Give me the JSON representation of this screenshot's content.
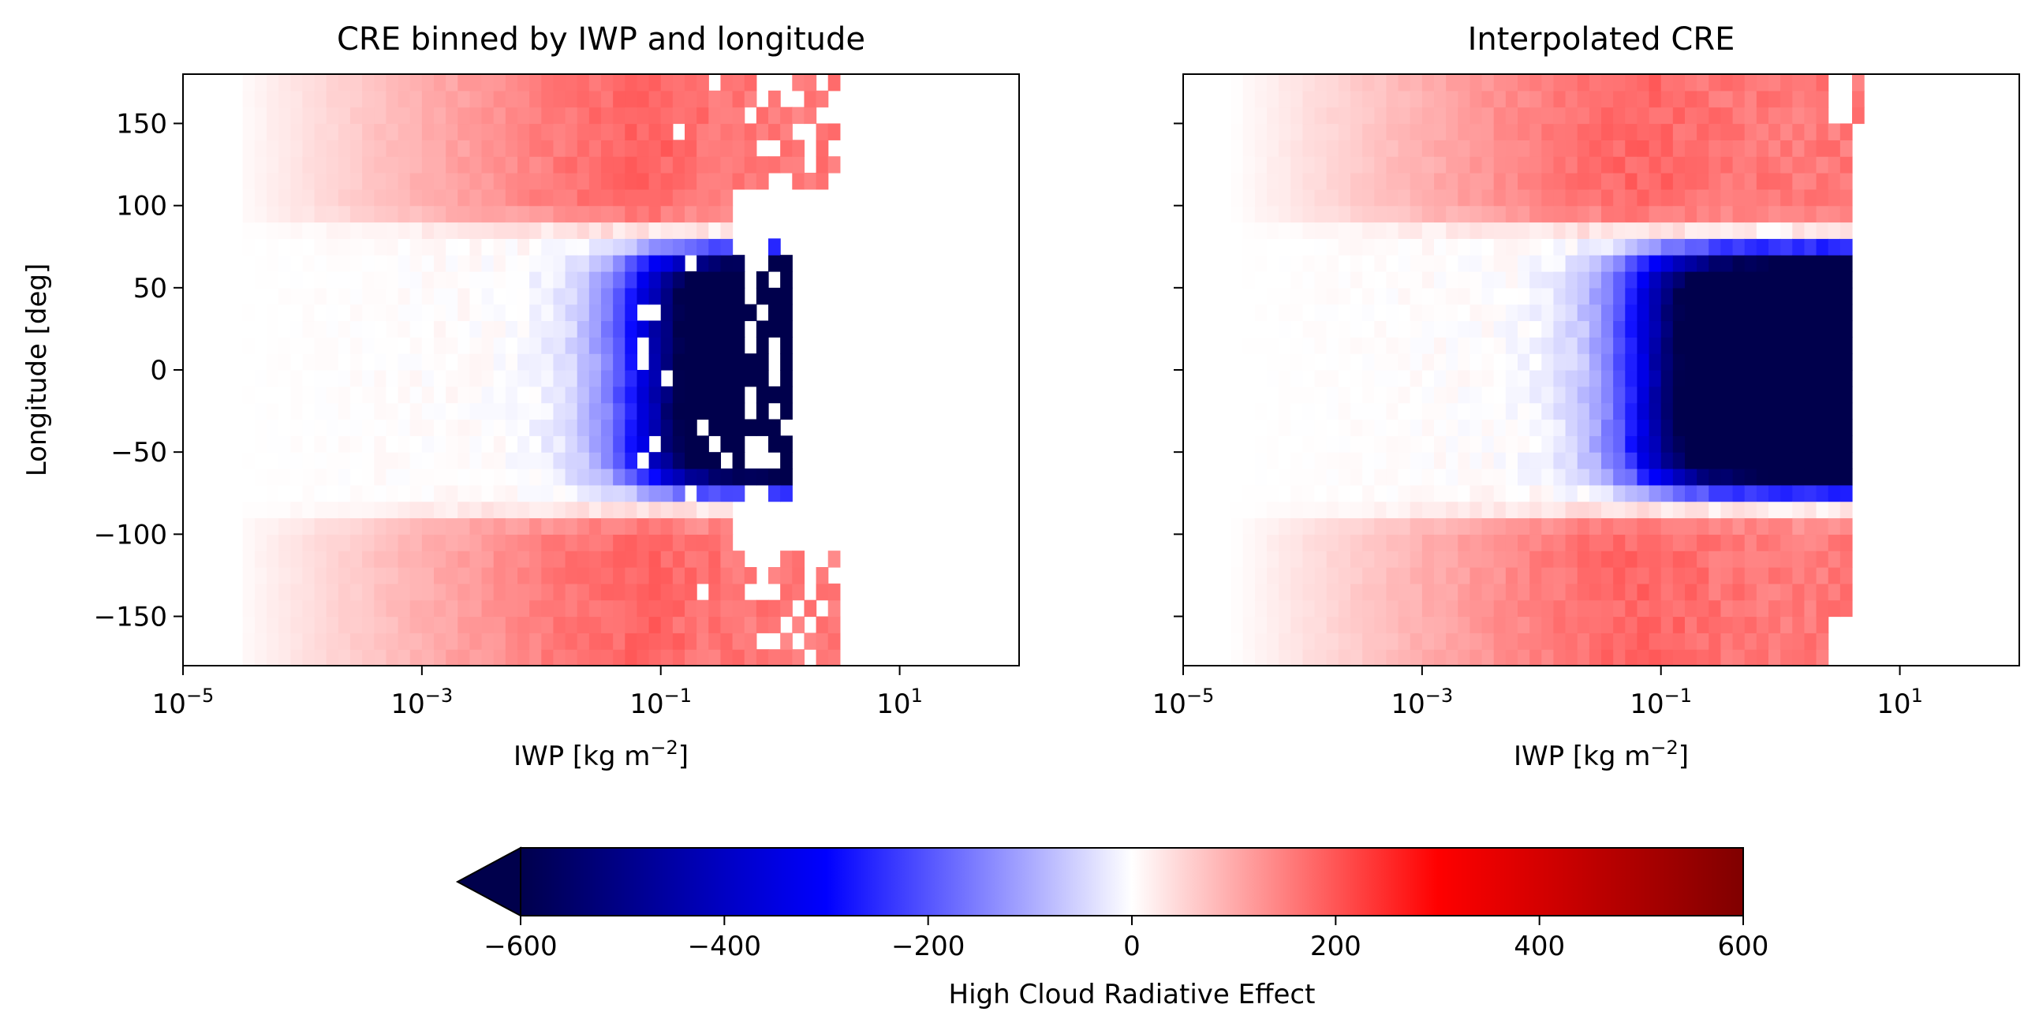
{
  "chart_data": [
    {
      "type": "heatmap",
      "title": "CRE binned by IWP and longitude",
      "xlabel": "IWP [kg m",
      "xlabel_sup": "−2",
      "xlabel_end": "]",
      "ylabel": "Longitude [deg]",
      "xscale": "log",
      "xlim": [
        1e-05,
        100
      ],
      "ylim": [
        -180,
        180
      ],
      "x_ticks": [
        {
          "base": "10",
          "exp": "−5"
        },
        {
          "base": "10",
          "exp": "−3"
        },
        {
          "base": "10",
          "exp": "−1"
        },
        {
          "base": "10",
          "exp": "1"
        }
      ],
      "y_ticks": [
        "150",
        "100",
        "50",
        "0",
        "−50",
        "−100",
        "−150"
      ],
      "x_tick_values": [
        1e-05,
        0.001,
        0.1,
        10
      ],
      "y_tick_values": [
        150,
        100,
        50,
        0,
        -50,
        -100,
        -150
      ],
      "bins": {
        "x_log_min": -5,
        "x_log_max": 2,
        "nx": 70,
        "y_min": -180,
        "y_max": 180,
        "ny": 36
      },
      "data_extent_log_iwp": [
        -4.5,
        0.5
      ],
      "summary": "Positive CRE (red, up to about 250) for longitudes above ~90 and below ~-90 at IWP 0.01–5; strongly negative CRE (down to about -600) near longitudes -60 to 60 at IWP 0.1–2; near-zero values at low IWP."
    },
    {
      "type": "heatmap",
      "title": "Interpolated CRE",
      "xlabel": "IWP [kg m",
      "xlabel_sup": "−2",
      "xlabel_end": "]",
      "xscale": "log",
      "xlim": [
        1e-05,
        100
      ],
      "ylim": [
        -180,
        180
      ],
      "x_ticks": [
        {
          "base": "10",
          "exp": "−5"
        },
        {
          "base": "10",
          "exp": "−3"
        },
        {
          "base": "10",
          "exp": "−1"
        },
        {
          "base": "10",
          "exp": "1"
        }
      ],
      "x_tick_values": [
        1e-05,
        0.001,
        0.1,
        10
      ],
      "y_tick_values": [
        150,
        100,
        50,
        0,
        -50,
        -100,
        -150
      ],
      "bins": {
        "x_log_min": -5,
        "x_log_max": 2,
        "nx": 70,
        "y_min": -180,
        "y_max": 180,
        "ny": 36
      },
      "data_extent_log_iwp": [
        -5,
        0.7
      ],
      "summary": "Smooth interpolated field: red (~150–250) for |longitude| > 90 at IWP 0.01–5, dark blue (~-600) for longitudes -70 to 70 at IWP 0.1–3, near zero at low IWP."
    }
  ],
  "colorbar": {
    "label": "High Cloud Radiative Effect",
    "cmap": "seismic",
    "vmin": -600,
    "vmax": 600,
    "extend": "min",
    "ticks": [
      "−600",
      "−400",
      "−200",
      "0",
      "200",
      "400",
      "600"
    ],
    "tick_values": [
      -600,
      -400,
      -200,
      0,
      200,
      400,
      600
    ]
  }
}
